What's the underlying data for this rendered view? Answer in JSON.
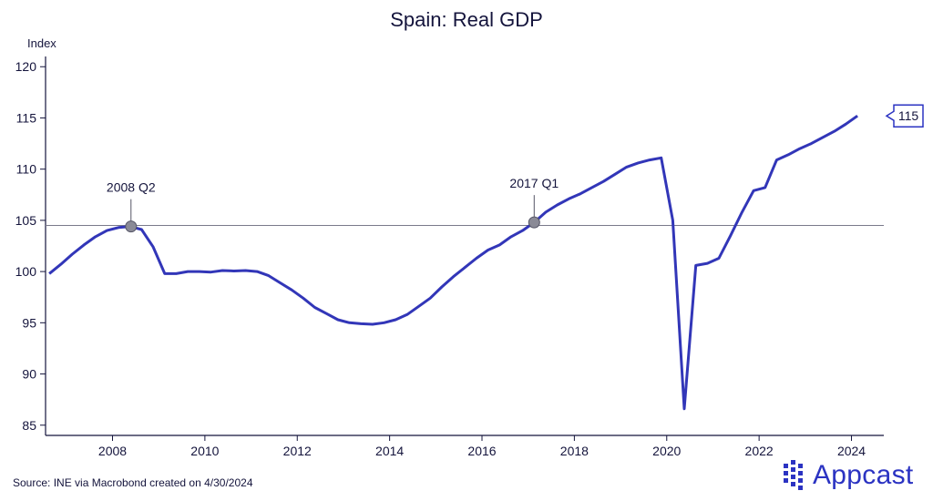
{
  "chart_data": {
    "type": "line",
    "title": "Spain: Real GDP",
    "ylabel": "Index",
    "xlabel": "",
    "ylim": [
      84,
      121
    ],
    "xlim": [
      2006.55,
      2024.7
    ],
    "yticks": [
      85,
      90,
      95,
      100,
      105,
      110,
      115,
      120
    ],
    "xticks": [
      2008,
      2010,
      2012,
      2014,
      2016,
      2018,
      2020,
      2022,
      2024
    ],
    "reference_line": 104.5,
    "series": [
      {
        "name": "Real GDP",
        "color": "#3236b8",
        "x": [
          2006.63,
          2006.88,
          2007.13,
          2007.38,
          2007.63,
          2007.88,
          2008.13,
          2008.38,
          2008.63,
          2008.88,
          2009.13,
          2009.38,
          2009.63,
          2009.88,
          2010.13,
          2010.38,
          2010.63,
          2010.88,
          2011.13,
          2011.38,
          2011.63,
          2011.88,
          2012.13,
          2012.38,
          2012.63,
          2012.88,
          2013.13,
          2013.38,
          2013.63,
          2013.88,
          2014.13,
          2014.38,
          2014.63,
          2014.88,
          2015.13,
          2015.38,
          2015.63,
          2015.88,
          2016.13,
          2016.38,
          2016.63,
          2016.88,
          2017.13,
          2017.38,
          2017.63,
          2017.88,
          2018.13,
          2018.38,
          2018.63,
          2018.88,
          2019.13,
          2019.38,
          2019.63,
          2019.88,
          2020.13,
          2020.38,
          2020.63,
          2020.88,
          2021.13,
          2021.38,
          2021.63,
          2021.88,
          2022.13,
          2022.38,
          2022.63,
          2022.88,
          2023.13,
          2023.38,
          2023.63,
          2023.88,
          2024.13
        ],
        "y": [
          99.8,
          100.7,
          101.7,
          102.6,
          103.4,
          104.0,
          104.3,
          104.4,
          104.1,
          102.4,
          99.8,
          99.8,
          100.0,
          100.0,
          99.95,
          100.1,
          100.05,
          100.1,
          100.0,
          99.6,
          98.9,
          98.2,
          97.4,
          96.5,
          95.9,
          95.3,
          95.0,
          94.9,
          94.85,
          95.0,
          95.3,
          95.8,
          96.6,
          97.4,
          98.5,
          99.5,
          100.4,
          101.3,
          102.1,
          102.6,
          103.4,
          104.0,
          104.8,
          105.8,
          106.5,
          107.1,
          107.6,
          108.2,
          108.8,
          109.5,
          110.2,
          110.6,
          110.9,
          111.1,
          105.0,
          86.6,
          100.6,
          100.8,
          101.3,
          103.5,
          105.8,
          107.9,
          108.2,
          110.9,
          111.4,
          112.0,
          112.5,
          113.1,
          113.7,
          114.4,
          115.2
        ]
      }
    ],
    "annotations": [
      {
        "label": "2008 Q2",
        "x": 2008.4,
        "y": 104.4
      },
      {
        "label": "2017 Q1",
        "x": 2017.13,
        "y": 104.8
      }
    ],
    "last_value_label": "115"
  },
  "footer": {
    "source": "Source: INE via Macrobond created on 4/30/2024",
    "brand": "Appcast"
  }
}
